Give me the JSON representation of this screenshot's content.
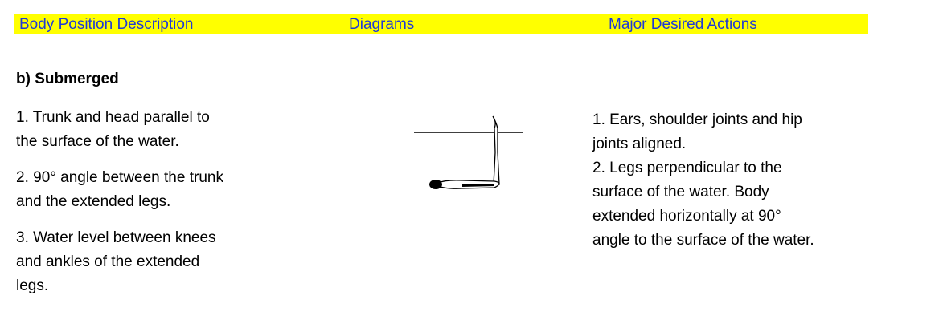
{
  "header": {
    "columns": [
      "Body Position Description",
      "Diagrams",
      "Major Desired Actions"
    ]
  },
  "section": {
    "title": "b)  Submerged",
    "description": [
      "1. Trunk and head parallel to",
      "the surface of the water.",
      "2. 90° angle between the trunk",
      "and the extended legs.",
      "3. Water level between knees",
      "and ankles of the extended",
      "legs."
    ],
    "actions": [
      "1. Ears, shoulder joints and hip",
      "joints aligned.",
      "2. Legs perpendicular to the",
      "surface of the water. Body",
      "extended horizontally at 90°",
      "angle to the surface of the water."
    ]
  }
}
